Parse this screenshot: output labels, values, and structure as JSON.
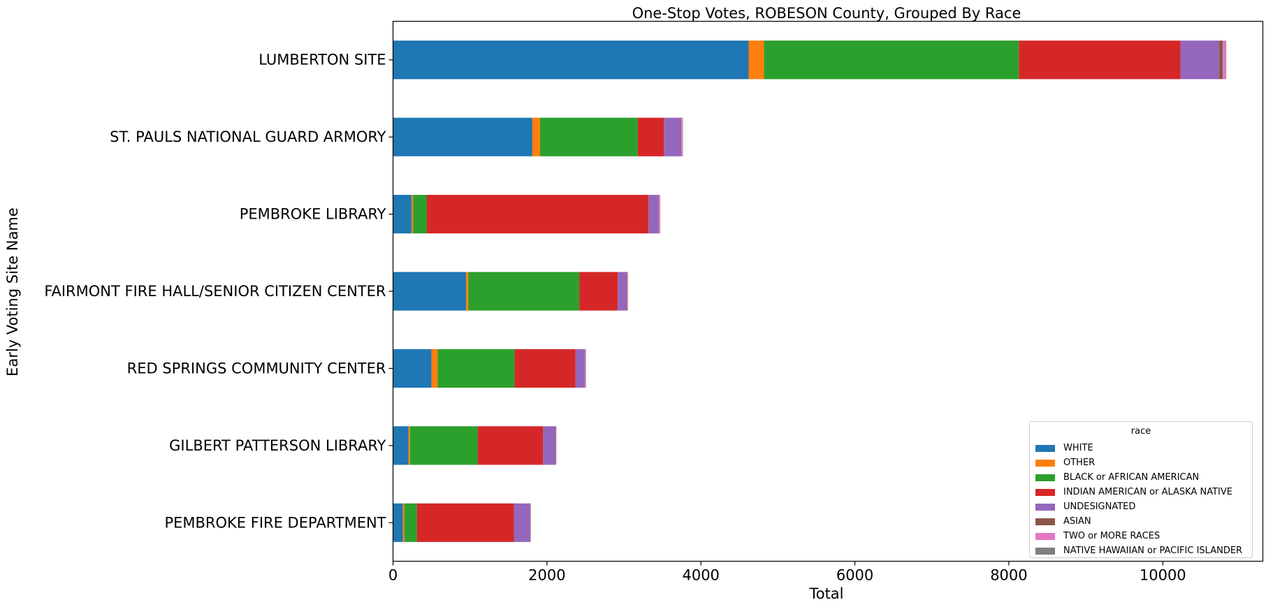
{
  "chart_data": {
    "type": "bar",
    "orientation": "horizontal",
    "stacked": true,
    "title": "One-Stop Votes, ROBESON County, Grouped By Race",
    "xlabel": "Total",
    "ylabel": "Early Voting Site Name",
    "xlim": [
      0,
      11300
    ],
    "xticks": [
      0,
      2000,
      4000,
      6000,
      8000,
      10000
    ],
    "grid": false,
    "legend_title": "race",
    "legend_position": "lower-right",
    "categories": [
      "LUMBERTON SITE",
      "ST. PAULS NATIONAL GUARD ARMORY",
      "PEMBROKE LIBRARY",
      "FAIRMONT FIRE HALL/SENIOR CITIZEN CENTER",
      "RED SPRINGS COMMUNITY CENTER",
      "GILBERT PATTERSON LIBRARY",
      "PEMBROKE FIRE DEPARTMENT"
    ],
    "series": [
      {
        "name": "WHITE",
        "color": "#1f77b4",
        "values": [
          4620,
          1810,
          240,
          950,
          500,
          200,
          130
        ]
      },
      {
        "name": "OTHER",
        "color": "#ff7f0e",
        "values": [
          200,
          100,
          20,
          30,
          80,
          20,
          20
        ]
      },
      {
        "name": "BLACK or AFRICAN AMERICAN",
        "color": "#2ca02c",
        "values": [
          3310,
          1270,
          180,
          1440,
          1000,
          880,
          160
        ]
      },
      {
        "name": "INDIAN AMERICAN or ALASKA NATIVE",
        "color": "#d62728",
        "values": [
          2100,
          340,
          2880,
          500,
          790,
          850,
          1260
        ]
      },
      {
        "name": "UNDESIGNATED",
        "color": "#9467bd",
        "values": [
          500,
          220,
          130,
          110,
          120,
          160,
          210
        ]
      },
      {
        "name": "ASIAN",
        "color": "#8c564b",
        "values": [
          50,
          5,
          5,
          10,
          5,
          5,
          5
        ]
      },
      {
        "name": "TWO or MORE RACES",
        "color": "#e377c2",
        "values": [
          40,
          20,
          15,
          10,
          10,
          5,
          5
        ]
      },
      {
        "name": "NATIVE HAWAIIAN or PACIFIC ISLANDER",
        "color": "#7f7f7f",
        "values": [
          5,
          2,
          2,
          2,
          2,
          2,
          2
        ]
      }
    ]
  }
}
